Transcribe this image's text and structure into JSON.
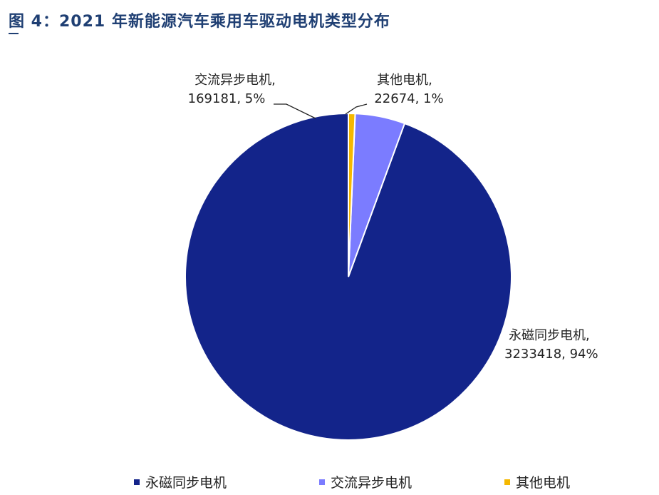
{
  "figure": {
    "title": "图 4：2021 年新能源汽车乘用车驱动电机类型分布"
  },
  "chart_data": {
    "type": "pie",
    "title": "",
    "categories": [
      "永磁同步电机",
      "交流异步电机",
      "其他电机"
    ],
    "values": [
      3233418,
      169181,
      22674
    ],
    "percent_labels": [
      "94%",
      "5%",
      "1%"
    ],
    "data_labels": [
      {
        "name": "永磁同步电机,",
        "value": "3233418, 94%"
      },
      {
        "name": "交流异步电机,",
        "value": "169181, 5%"
      },
      {
        "name": "其他电机,",
        "value": "22674, 1%"
      }
    ],
    "colors": [
      "#13248a",
      "#7b7cff",
      "#f5b800"
    ],
    "legend": {
      "position": "bottom",
      "items": [
        "永磁同步电机",
        "交流异步电机",
        "其他电机"
      ]
    }
  }
}
